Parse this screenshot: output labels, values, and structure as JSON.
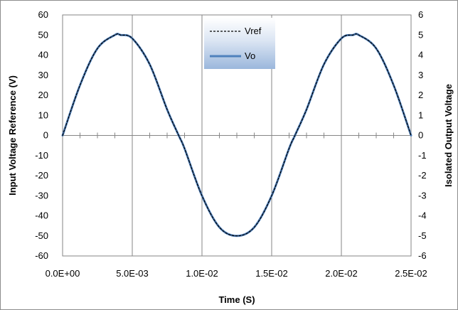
{
  "chart_data": {
    "type": "line",
    "title": "",
    "xlabel": "Time (S)",
    "ylabel": "Input Voltage Reference (V)",
    "y2label": "Isolated Output Voltage",
    "xlim": [
      0,
      0.025
    ],
    "ylim": [
      -60,
      60
    ],
    "y2lim": [
      -6,
      6
    ],
    "x_ticks": [
      "0.0E+00",
      "5.0E-03",
      "1.0E-02",
      "1.5E-02",
      "2.0E-02",
      "2.5E-02"
    ],
    "y_ticks": [
      "60",
      "50",
      "40",
      "30",
      "20",
      "10",
      "0",
      "-10",
      "-20",
      "-30",
      "-40",
      "-50",
      "-60"
    ],
    "y2_ticks": [
      "6",
      "5",
      "4",
      "3",
      "2",
      "1",
      "0",
      "-1",
      "-2",
      "-3",
      "-4",
      "-5",
      "-6"
    ],
    "grid": "vertical",
    "legend_position": "top-center",
    "series": [
      {
        "name": "Vref",
        "axis": "left",
        "style": "dashed",
        "color": "#000000",
        "x": [
          0,
          0.00125,
          0.0025,
          0.00375,
          0.00417,
          0.005,
          0.00625,
          0.0075,
          0.00833,
          0.00875,
          0.01,
          0.01125,
          0.0125,
          0.01375,
          0.015,
          0.01625,
          0.01667,
          0.0175,
          0.01875,
          0.02,
          0.02083,
          0.02125,
          0.0225,
          0.02375,
          0.025
        ],
        "values": [
          0,
          25.0,
          43.3,
          50.0,
          50.0,
          48.3,
          35.4,
          12.9,
          0,
          -6.5,
          -30.0,
          -45.7,
          -50.0,
          -45.7,
          -30.0,
          -6.5,
          0,
          12.9,
          35.4,
          48.3,
          50.0,
          50.0,
          43.3,
          25.0,
          0
        ]
      },
      {
        "name": "Vo",
        "axis": "right",
        "style": "solid",
        "color": "#4f81bd",
        "x": [
          0,
          0.00125,
          0.0025,
          0.00375,
          0.00417,
          0.005,
          0.00625,
          0.0075,
          0.00833,
          0.00875,
          0.01,
          0.01125,
          0.0125,
          0.01375,
          0.015,
          0.01625,
          0.01667,
          0.0175,
          0.01875,
          0.02,
          0.02083,
          0.02125,
          0.0225,
          0.02375,
          0.025
        ],
        "values": [
          0,
          2.5,
          4.33,
          5.0,
          5.0,
          4.83,
          3.54,
          1.29,
          0,
          -0.65,
          -3.0,
          -4.57,
          -5.0,
          -4.57,
          -3.0,
          -0.65,
          0,
          1.29,
          3.54,
          4.83,
          5.0,
          5.0,
          4.33,
          2.5,
          0
        ]
      }
    ]
  }
}
